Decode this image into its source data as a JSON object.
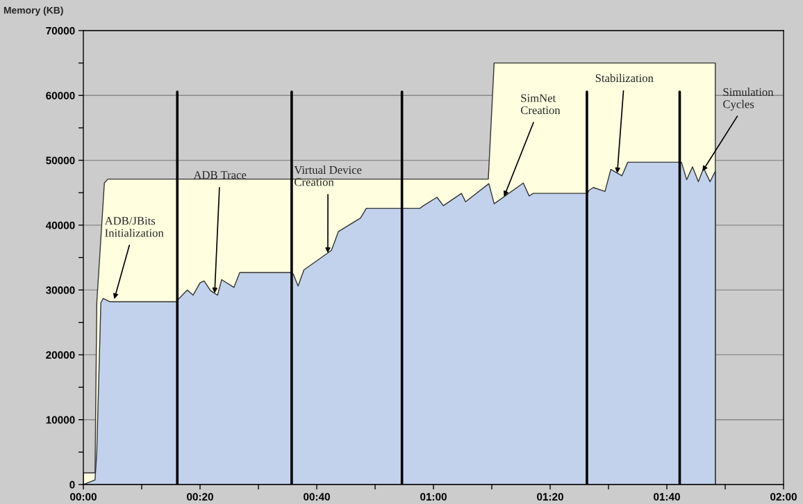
{
  "chart_data": {
    "type": "area",
    "ylabel": "Memory (KB)",
    "xlim": [
      0,
      120
    ],
    "ylim": [
      0,
      70000
    ],
    "xticks": [
      {
        "value": 0,
        "label": "00:00"
      },
      {
        "value": 10,
        "label": null
      },
      {
        "value": 20,
        "label": "00:20"
      },
      {
        "value": 30,
        "label": null
      },
      {
        "value": 40,
        "label": "00:40"
      },
      {
        "value": 50,
        "label": null
      },
      {
        "value": 60,
        "label": "01:00"
      },
      {
        "value": 70,
        "label": null
      },
      {
        "value": 80,
        "label": "01:20"
      },
      {
        "value": 90,
        "label": null
      },
      {
        "value": 100,
        "label": "01:40"
      },
      {
        "value": 110,
        "label": null
      },
      {
        "value": 120,
        "label": "02:00"
      }
    ],
    "yticks": [
      0,
      {
        "value": 5000,
        "label": null
      },
      10000,
      {
        "value": 15000,
        "label": null
      },
      20000,
      {
        "value": 25000,
        "label": null
      },
      30000,
      {
        "value": 35000,
        "label": null
      },
      40000,
      {
        "value": 45000,
        "label": null
      },
      50000,
      {
        "value": 55000,
        "label": null
      },
      60000,
      {
        "value": 65000,
        "label": null
      },
      70000
    ],
    "grid": "y",
    "series": [
      {
        "color": "#ffffe0",
        "x": [
          0,
          2.0,
          2.3,
          3.6,
          4.2,
          69.4,
          70.4,
          108.3
        ],
        "values": [
          1800,
          1800,
          28000,
          46500,
          47100,
          47100,
          65000,
          65000
        ]
      },
      {
        "color": "#c2d2ec",
        "x": [
          0,
          2.0,
          2.3,
          3.0,
          3.4,
          4.5,
          16.1,
          16.3,
          17.8,
          18.8,
          20.0,
          20.7,
          21.8,
          23.0,
          23.7,
          25.8,
          26.8,
          35.7,
          36.0,
          36.8,
          37.8,
          42.5,
          42.8,
          43.7,
          47.5,
          48.5,
          57.7,
          58.1,
          60.6,
          61.7,
          64.8,
          65.5,
          69.5,
          70.4,
          75.4,
          76.4,
          77.1,
          86.4,
          86.7,
          87.4,
          89.4,
          90.4,
          92.3,
          93.3,
          102.2,
          102.5,
          103.4,
          104.4,
          105.4,
          106.3,
          107.4,
          108.3
        ],
        "values": [
          0,
          700,
          5000,
          28000,
          28700,
          28200,
          28200,
          28600,
          30000,
          29200,
          31100,
          31400,
          29900,
          29200,
          31600,
          30400,
          32700,
          32700,
          32400,
          30600,
          33100,
          36100,
          36800,
          39000,
          41100,
          42600,
          42600,
          42900,
          44300,
          43000,
          44900,
          43600,
          46400,
          43300,
          46500,
          44500,
          44900,
          44900,
          45400,
          45800,
          45200,
          48600,
          47600,
          49700,
          49700,
          49700,
          47000,
          49000,
          46700,
          48800,
          46700,
          48300
        ]
      }
    ],
    "ref_lines": [
      {
        "axis": "x",
        "value": 16.1,
        "color": "#000000"
      },
      {
        "axis": "x",
        "value": 35.7,
        "color": "#000000"
      },
      {
        "axis": "x",
        "value": 54.6,
        "color": "#000000"
      },
      {
        "axis": "x",
        "value": 86.3,
        "color": "#000000"
      },
      {
        "axis": "x",
        "value": 102.2,
        "color": "#000000"
      }
    ],
    "annotations": [
      {
        "text": "ADB/JBits\nInitialization",
        "x": 5.3,
        "y": 28600
      },
      {
        "text": "ADB Trace",
        "x": 22.5,
        "y": 29500
      },
      {
        "text": "Virtual Device\nCreation",
        "x": 41.9,
        "y": 35700
      },
      {
        "text": "SimNet\nCreation",
        "x": 72.1,
        "y": 44400
      },
      {
        "text": "Stabilization",
        "x": 91.5,
        "y": 48000
      },
      {
        "text": "Simulation\nCycles",
        "x": 106.1,
        "y": 48300
      }
    ]
  }
}
